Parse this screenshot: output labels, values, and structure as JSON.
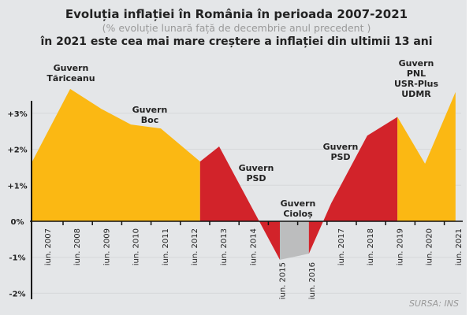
{
  "chart_data": {
    "type": "area",
    "title": "Evoluția inflației în România în perioada 2007-2021",
    "subtitle": "(% evoluție lunară față de decembrie anul precedent )",
    "headline": "în 2021 este cea mai mare creștere a inflației din ultimii 13 ani",
    "source": "SURSA: INS",
    "ylim": [
      -2.2,
      3.5
    ],
    "y_ticks": [
      3,
      2,
      1,
      0,
      -1,
      -2
    ],
    "y_tick_labels": [
      "+3%",
      "+2%",
      "+1%",
      "0%",
      "-1%",
      "-2%"
    ],
    "x_tick_labels": [
      "iun. 2007",
      "iun. 2008",
      "iun. 2009",
      "iun. 2010",
      "iun. 2011",
      "iun. 2012",
      "iun. 2013",
      "iun. 2014",
      "iun. 2015",
      "iun. 2016",
      "iun. 2017",
      "iun. 2018",
      "iun. 2019",
      "iun. 2020",
      "iun. 2021"
    ],
    "x": [
      2006.46,
      2007.78,
      2008.83,
      2009.85,
      2010.87,
      2012.21,
      2012.86,
      2014.93,
      2015.92,
      2016.68,
      2017.91,
      2018.94,
      2019.88,
      2020.92
    ],
    "values": [
      1.62,
      3.68,
      3.13,
      2.69,
      2.58,
      1.66,
      2.08,
      -1.07,
      -0.9,
      0.5,
      2.38,
      2.9,
      1.6,
      3.59
    ],
    "grid": true,
    "colors": {
      "yellow": "#fbb813",
      "red": "#d2232a",
      "gray": "#bcbdbe"
    },
    "segments": [
      {
        "from": 0,
        "to": 5,
        "color": "yellow"
      },
      {
        "from": 5,
        "to": 7,
        "color": "red"
      },
      {
        "from": 7,
        "to": 8,
        "color": "gray"
      },
      {
        "from": 8,
        "to": 11,
        "color": "red"
      },
      {
        "from": 11,
        "to": 13,
        "color": "yellow"
      }
    ],
    "annotations": [
      {
        "lines": [
          "Guvern",
          "Tăriceanu"
        ]
      },
      {
        "lines": [
          "Guvern",
          "Boc"
        ]
      },
      {
        "lines": [
          "Guvern",
          "PSD"
        ]
      },
      {
        "lines": [
          "Guvern",
          "Cioloș"
        ]
      },
      {
        "lines": [
          "Guvern",
          "PSD"
        ]
      },
      {
        "lines": [
          "Guvern",
          "PNL",
          "USR-Plus",
          "UDMR"
        ]
      }
    ]
  }
}
